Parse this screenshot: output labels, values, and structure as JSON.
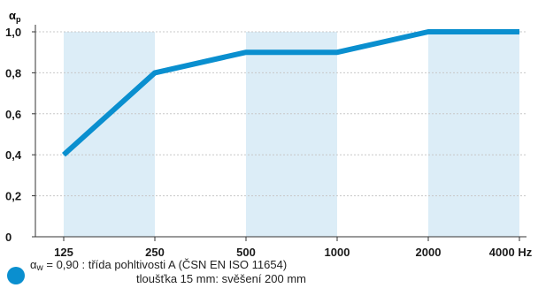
{
  "chart_data": {
    "type": "line",
    "ylabel": "α",
    "ylabel_sub": "p",
    "categories": [
      "125",
      "250",
      "500",
      "1000",
      "2000",
      "4000 Hz"
    ],
    "yticks": [
      "0",
      "0,2",
      "0,4",
      "0,6",
      "0,8",
      "1,0"
    ],
    "ylim": [
      0,
      1.0
    ],
    "values": [
      0.4,
      0.8,
      0.9,
      0.9,
      1.0,
      1.0
    ],
    "grid": "horizontal dashed",
    "shaded_bands": [
      "125",
      "500",
      "2000"
    ],
    "colors": {
      "line": "#0a8fcf",
      "band": "#dcedf7",
      "grid": "#c8c8c8",
      "axis": "#333333"
    }
  },
  "legend": {
    "alpha": "α",
    "sub": "w",
    "line1_rest": " = 0,90 : třída pohltivosti A (ČSN EN ISO 11654)",
    "line2": "tloušťka 15 mm: svěšení 200 mm",
    "dot_color": "#0a8fcf"
  }
}
